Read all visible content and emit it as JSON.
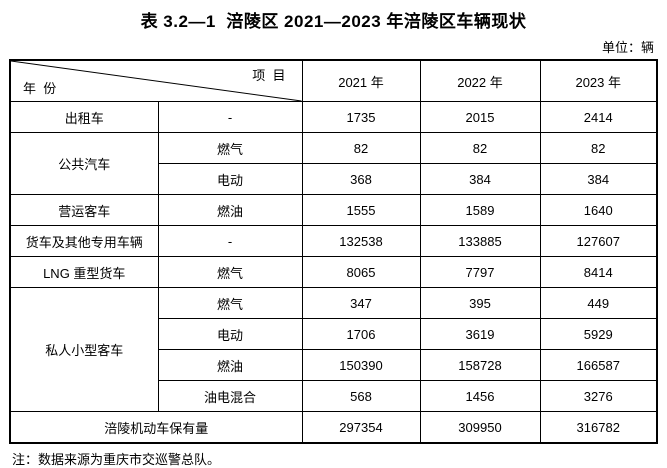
{
  "page": {
    "title": "表 3.2—1  涪陵区 2021—2023 年涪陵区车辆现状",
    "unit_label": "单位：辆",
    "footnote": "注：数据来源为重庆市交巡警总队。"
  },
  "table": {
    "corner": {
      "top_right": "项  目",
      "bottom_left": "年  份"
    },
    "year_headers": [
      "2021 年",
      "2022 年",
      "2023 年"
    ],
    "groups": [
      {
        "category": "出租车",
        "rows": [
          {
            "fuel": "-",
            "values": [
              "1735",
              "2015",
              "2414"
            ]
          }
        ]
      },
      {
        "category": "公共汽车",
        "rows": [
          {
            "fuel": "燃气",
            "values": [
              "82",
              "82",
              "82"
            ]
          },
          {
            "fuel": "电动",
            "values": [
              "368",
              "384",
              "384"
            ]
          }
        ]
      },
      {
        "category": "营运客车",
        "rows": [
          {
            "fuel": "燃油",
            "values": [
              "1555",
              "1589",
              "1640"
            ]
          }
        ]
      },
      {
        "category": "货车及其他专用车辆",
        "rows": [
          {
            "fuel": "-",
            "values": [
              "132538",
              "133885",
              "127607"
            ]
          }
        ]
      },
      {
        "category": "LNG 重型货车",
        "rows": [
          {
            "fuel": "燃气",
            "values": [
              "8065",
              "7797",
              "8414"
            ]
          }
        ]
      },
      {
        "category": "私人小型客车",
        "rows": [
          {
            "fuel": "燃气",
            "values": [
              "347",
              "395",
              "449"
            ]
          },
          {
            "fuel": "电动",
            "values": [
              "1706",
              "3619",
              "5929"
            ]
          },
          {
            "fuel": "燃油",
            "values": [
              "150390",
              "158728",
              "166587"
            ]
          },
          {
            "fuel": "油电混合",
            "values": [
              "568",
              "1456",
              "3276"
            ]
          }
        ]
      }
    ],
    "total": {
      "label": "涪陵机动车保有量",
      "values": [
        "297354",
        "309950",
        "316782"
      ]
    }
  }
}
